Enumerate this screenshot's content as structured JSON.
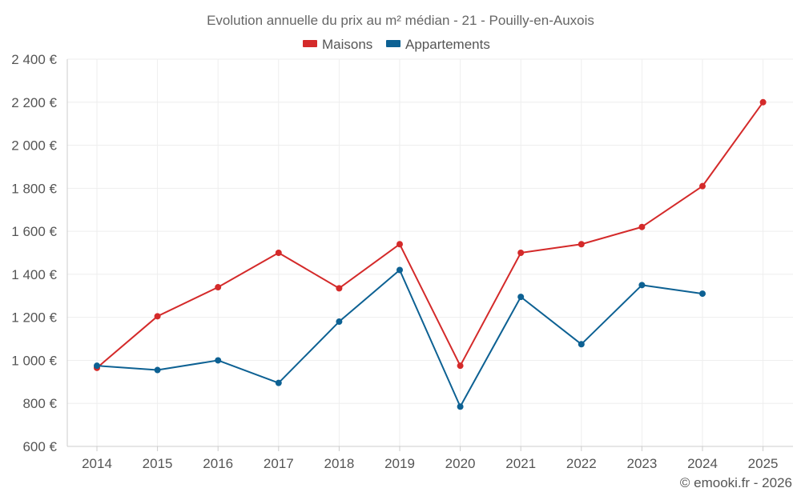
{
  "chart_data": {
    "type": "line",
    "title": "Evolution annuelle du prix au m² médian - 21 - Pouilly-en-Auxois",
    "categories": [
      "2014",
      "2015",
      "2016",
      "2017",
      "2018",
      "2019",
      "2020",
      "2021",
      "2022",
      "2023",
      "2024",
      "2025"
    ],
    "series": [
      {
        "name": "Maisons",
        "color": "#d42a2a",
        "values": [
          965,
          1205,
          1340,
          1500,
          1335,
          1540,
          975,
          1500,
          1540,
          1620,
          1810,
          2200
        ]
      },
      {
        "name": "Appartements",
        "color": "#0d6193",
        "values": [
          975,
          955,
          1000,
          895,
          1180,
          1420,
          785,
          1295,
          1075,
          1350,
          1310,
          null
        ]
      }
    ],
    "ylim": [
      600,
      2400
    ],
    "yticks": [
      600,
      800,
      1000,
      1200,
      1400,
      1600,
      1800,
      2000,
      2200,
      2400
    ],
    "ytick_labels": [
      "600 €",
      "800 €",
      "1 000 €",
      "1 200 €",
      "1 400 €",
      "1 600 €",
      "1 800 €",
      "2 000 €",
      "2 200 €",
      "2 400 €"
    ],
    "xlabel": "",
    "ylabel": "",
    "grid": true,
    "legend_position": "top-center"
  },
  "credit": "© emooki.fr - 2026"
}
